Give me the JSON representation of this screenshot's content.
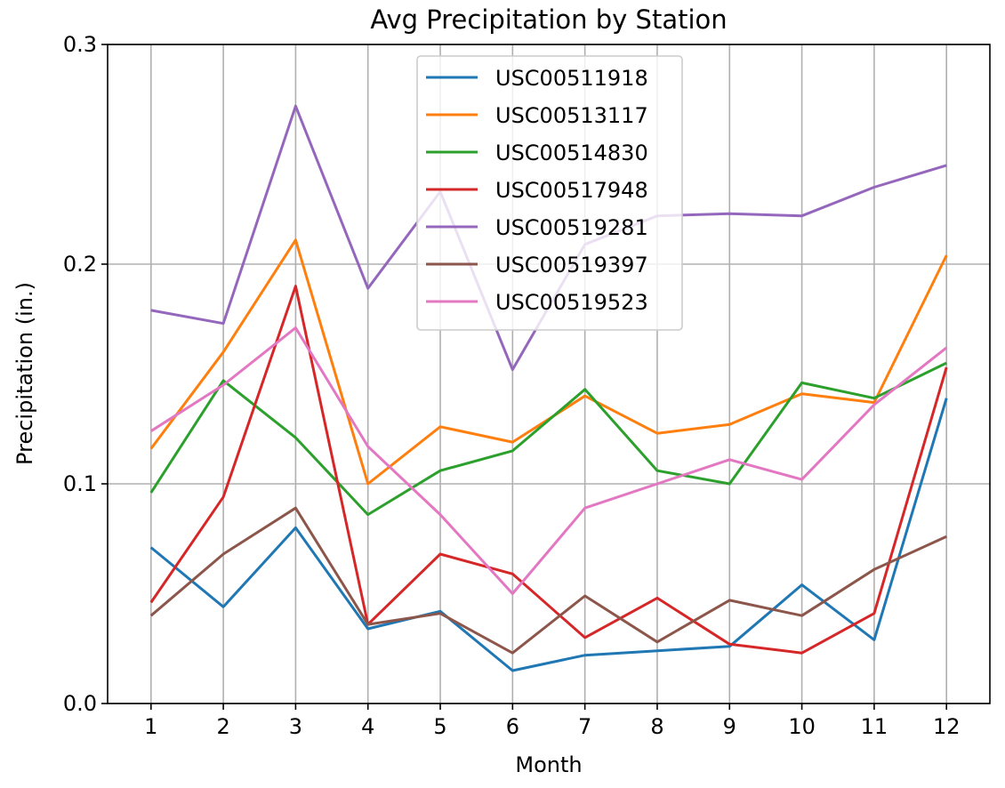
{
  "chart_data": {
    "type": "line",
    "title": "Avg Precipitation by Station",
    "xlabel": "Month",
    "ylabel": "Precipitation (in.)",
    "x": [
      1,
      2,
      3,
      4,
      5,
      6,
      7,
      8,
      9,
      10,
      11,
      12
    ],
    "xlim": [
      0.4,
      12.6
    ],
    "ylim": [
      0.0,
      0.3
    ],
    "yticks": [
      "0.0",
      "0.1",
      "0.2",
      "0.3"
    ],
    "grid": true,
    "legend_position": "upper center",
    "series": [
      {
        "name": "USC00511918",
        "color": "#1f77b4",
        "values": [
          0.071,
          0.044,
          0.08,
          0.034,
          0.042,
          0.015,
          0.022,
          0.024,
          0.026,
          0.054,
          0.029,
          0.139
        ]
      },
      {
        "name": "USC00513117",
        "color": "#ff7f0e",
        "values": [
          0.116,
          0.16,
          0.211,
          0.1,
          0.126,
          0.119,
          0.14,
          0.123,
          0.127,
          0.141,
          0.137,
          0.204
        ]
      },
      {
        "name": "USC00514830",
        "color": "#2ca02c",
        "values": [
          0.096,
          0.147,
          0.121,
          0.086,
          0.106,
          0.115,
          0.143,
          0.106,
          0.1,
          0.146,
          0.139,
          0.155
        ]
      },
      {
        "name": "USC00517948",
        "color": "#d62728",
        "values": [
          0.046,
          0.094,
          0.19,
          0.036,
          0.068,
          0.059,
          0.03,
          0.048,
          0.027,
          0.023,
          0.041,
          0.153
        ]
      },
      {
        "name": "USC00519281",
        "color": "#9467bd",
        "values": [
          0.179,
          0.173,
          0.272,
          0.189,
          0.233,
          0.152,
          0.209,
          0.222,
          0.223,
          0.222,
          0.235,
          0.245
        ]
      },
      {
        "name": "USC00519397",
        "color": "#8c564b",
        "values": [
          0.04,
          0.068,
          0.089,
          0.036,
          0.041,
          0.023,
          0.049,
          0.028,
          0.047,
          0.04,
          0.061,
          0.076
        ]
      },
      {
        "name": "USC00519523",
        "color": "#e377c2",
        "values": [
          0.124,
          0.145,
          0.171,
          0.117,
          0.086,
          0.05,
          0.089,
          0.1,
          0.111,
          0.102,
          0.136,
          0.162
        ]
      }
    ]
  }
}
